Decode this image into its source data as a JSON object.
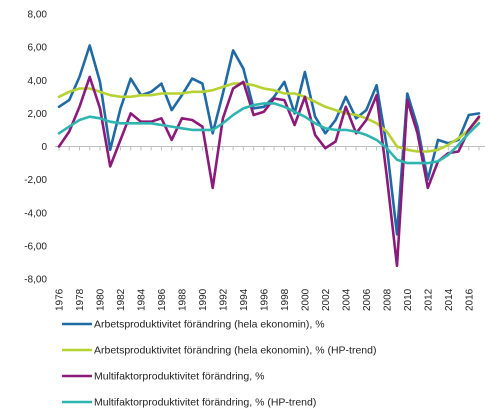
{
  "chart_data": {
    "type": "line",
    "x": [
      1976,
      1977,
      1978,
      1979,
      1980,
      1981,
      1982,
      1983,
      1984,
      1985,
      1986,
      1987,
      1988,
      1989,
      1990,
      1991,
      1992,
      1993,
      1994,
      1995,
      1996,
      1997,
      1998,
      1999,
      2000,
      2001,
      2002,
      2003,
      2004,
      2005,
      2006,
      2007,
      2008,
      2009,
      2010,
      2011,
      2012,
      2013,
      2014,
      2015,
      2016,
      2017
    ],
    "x_tick_labels": [
      "1976",
      "1978",
      "1980",
      "1982",
      "1984",
      "1986",
      "1988",
      "1990",
      "1992",
      "1994",
      "1996",
      "1998",
      "2000",
      "2002",
      "2004",
      "2006",
      "2008",
      "2010",
      "2012",
      "2014",
      "2016"
    ],
    "ylim": [
      -8,
      8
    ],
    "y_tick_labels": [
      "8,00",
      "6,00",
      "4,00",
      "2,00",
      "0",
      "-2,00",
      "-4,00",
      "-6,00",
      "-8,00"
    ],
    "grid": "none",
    "legend_position": "bottom",
    "series": [
      {
        "name": "Arbetsproduktivitet förändring (hela ekonomin), %",
        "color": "#1f6aa5",
        "values": [
          2.4,
          2.8,
          4.2,
          6.1,
          3.9,
          -0.2,
          2.3,
          4.1,
          3.1,
          3.3,
          3.8,
          2.2,
          3.1,
          4.1,
          3.8,
          0.8,
          3.2,
          5.8,
          4.7,
          2.3,
          2.4,
          3.0,
          3.9,
          2.0,
          4.5,
          1.8,
          0.8,
          1.6,
          3.0,
          1.7,
          2.2,
          3.7,
          0.0,
          -5.3,
          3.2,
          1.2,
          -2.0,
          0.4,
          0.2,
          0.4,
          1.9,
          2.0
        ]
      },
      {
        "name": "Arbetsproduktivitet förändring (hela ekonomin), % (HP-trend)",
        "color": "#b6d232",
        "values": [
          3.0,
          3.3,
          3.5,
          3.5,
          3.3,
          3.1,
          3.0,
          3.0,
          3.1,
          3.1,
          3.2,
          3.2,
          3.2,
          3.3,
          3.3,
          3.4,
          3.6,
          3.8,
          3.8,
          3.7,
          3.5,
          3.4,
          3.2,
          3.2,
          3.0,
          2.7,
          2.4,
          2.2,
          2.0,
          1.9,
          1.7,
          1.4,
          0.9,
          0.0,
          -0.2,
          -0.3,
          -0.3,
          -0.2,
          0.1,
          0.5,
          1.0,
          1.7
        ]
      },
      {
        "name": "Multifaktorproduktivitet förändring, %",
        "color": "#8b1a7a",
        "values": [
          0.0,
          0.9,
          2.4,
          4.2,
          2.3,
          -1.2,
          0.4,
          2.0,
          1.5,
          1.5,
          1.7,
          0.4,
          1.7,
          1.6,
          1.2,
          -2.5,
          1.7,
          3.5,
          3.9,
          1.9,
          2.1,
          2.9,
          2.8,
          1.3,
          3.0,
          0.7,
          -0.1,
          0.3,
          2.4,
          0.8,
          1.6,
          3.1,
          -1.8,
          -7.2,
          2.8,
          0.8,
          -2.5,
          -0.9,
          -0.4,
          -0.3,
          1.0,
          1.8
        ]
      },
      {
        "name": "Multifaktorproduktivitet förändring, % (HP-trend)",
        "color": "#2fb5b0",
        "values": [
          0.8,
          1.2,
          1.6,
          1.8,
          1.7,
          1.5,
          1.4,
          1.4,
          1.4,
          1.4,
          1.3,
          1.2,
          1.1,
          1.0,
          1.0,
          1.0,
          1.4,
          1.9,
          2.3,
          2.5,
          2.6,
          2.6,
          2.4,
          2.1,
          1.8,
          1.4,
          1.1,
          1.0,
          1.0,
          0.9,
          0.7,
          0.4,
          -0.1,
          -0.8,
          -1.0,
          -1.0,
          -1.0,
          -0.9,
          -0.5,
          0.1,
          0.8,
          1.4
        ]
      }
    ]
  }
}
